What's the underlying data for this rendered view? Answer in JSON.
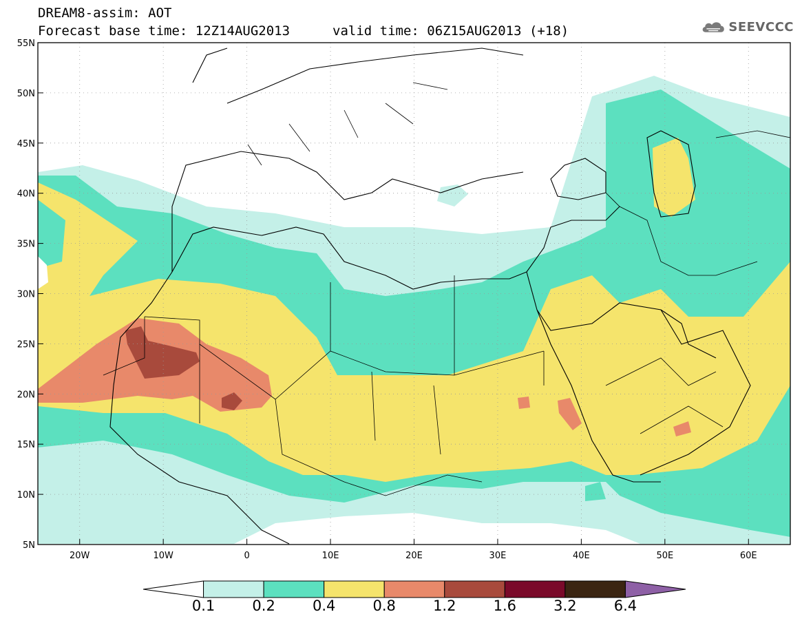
{
  "header": {
    "title_line1": "DREAM8-assim: AOT",
    "title_line2": "Forecast base time: 12Z14AUG2013",
    "valid_time": "valid time: 06Z15AUG2013 (+18)",
    "logo_text": "SEEVCCC",
    "logo_icon": "cloud-logo-icon"
  },
  "map": {
    "lon_range": [
      -25,
      65
    ],
    "lat_range": [
      5,
      55
    ],
    "lat_labels": [
      "55N",
      "50N",
      "45N",
      "40N",
      "35N",
      "30N",
      "25N",
      "20N",
      "15N",
      "10N",
      "5N"
    ],
    "lat_values": [
      55,
      50,
      45,
      40,
      35,
      30,
      25,
      20,
      15,
      10,
      5
    ],
    "lon_labels": [
      "20W",
      "10W",
      "0",
      "10E",
      "20E",
      "30E",
      "40E",
      "50E",
      "60E"
    ],
    "lon_values": [
      -20,
      -10,
      0,
      10,
      20,
      30,
      40,
      50,
      60
    ],
    "grid": true
  },
  "colorbar": {
    "levels": [
      "0.1",
      "0.2",
      "0.4",
      "0.8",
      "1.2",
      "1.6",
      "3.2",
      "6.4"
    ],
    "colors": [
      "#ffffff",
      "#c4f0e8",
      "#5ce0bf",
      "#f5e46c",
      "#e8896a",
      "#a84a3c",
      "#7a0a2a",
      "#3b2512",
      "#8e60a6"
    ]
  }
}
